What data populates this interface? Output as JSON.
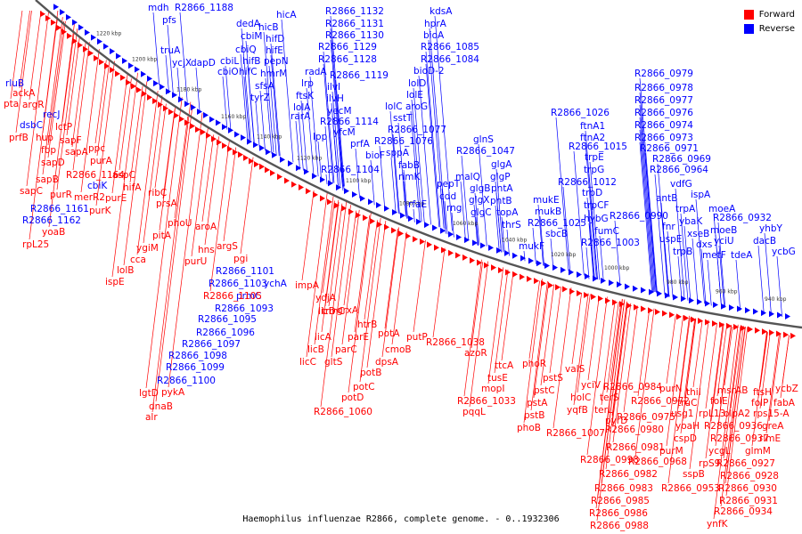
{
  "caption": "Haemophilus influenzae R2866, complete genome. - 0..1932306",
  "legend": {
    "forward_label": "Forward",
    "reverse_label": "Reverse",
    "forward_color": "#ff0000",
    "reverse_color": "#0000ff"
  },
  "backbone_color": "#555555",
  "ticks": [
    "940 kbp",
    "960 kbp",
    "980 kbp",
    "1000 kbp",
    "1020 kbp",
    "1040 kbp",
    "1060 kbp",
    "1080 kbp",
    "1100 kbp",
    "1120 kbp",
    "1140 kbp",
    "1160 kbp",
    "1180 kbp",
    "1200 kbp",
    "1220 kbp"
  ],
  "genes": {
    "reverse": [
      "mdh",
      "R2866_1188",
      "pfs",
      "truA",
      "ycjX",
      "dapD",
      "dedA",
      "hicB",
      "hicA",
      "cbiM",
      "hifD",
      "cbiQ",
      "hifE",
      "cbiL",
      "hifB",
      "pepN",
      "cbiO",
      "hifC",
      "hmrM",
      "sfsA",
      "tyrZ",
      "R2866_1132",
      "R2866_1131",
      "R2866_1130",
      "R2866_1129",
      "R2866_1128",
      "radA",
      "lrp",
      "ftsK",
      "lolA",
      "rarA",
      "R2866_1119",
      "ilvI",
      "ilvH",
      "yecM",
      "R2866_1114",
      "lpp",
      "yfcM",
      "prfA",
      "bioF",
      "R2866_1104",
      "kdsA",
      "hprA",
      "bioA",
      "R2866_1085",
      "R2866_1084",
      "bioD-2",
      "lolD",
      "lolE",
      "lolC",
      "aroG",
      "sstT",
      "R2866_1077",
      "R2866_1076",
      "sppA",
      "fabB",
      "rimK",
      "rfaE",
      "glnS",
      "R2866_1047",
      "glgA",
      "pepT",
      "malQ",
      "glgP",
      "cdd",
      "glgB",
      "rng",
      "glgX",
      "pntA",
      "pntB",
      "glgC",
      "topA",
      "thrS",
      "mukE",
      "mukB",
      "sbcB",
      "mukF",
      "R2866_1025",
      "R2866_1026",
      "ftnA1",
      "ftnA2",
      "R2866_1015",
      "trpE",
      "trpG",
      "R2866_1012",
      "trpD",
      "trpCF",
      "hybG",
      "fumC",
      "R2866_1003",
      "R2866_0990",
      "R2866_0979",
      "R2866_0978",
      "R2866_0977",
      "R2866_0976",
      "R2866_0974",
      "R2866_0973",
      "R2866_0971",
      "R2866_0969",
      "R2866_0964",
      "vdfG",
      "ispA",
      "antB",
      "trpA",
      "ybaK",
      "moeA",
      "fnr",
      "uspE",
      "xseB",
      "R2866_0932",
      "moeB",
      "dxs",
      "yciU",
      "yhbY",
      "dacB",
      "trpB",
      "metF",
      "tdeA",
      "ycbG",
      "rluB",
      "recJ",
      "dsbC",
      "cbiK",
      "R2866_1161",
      "R2866_1162",
      "R2866_1101",
      "ychA",
      "R2866_1103",
      "prmC",
      "R2866_1093",
      "R2866_1095",
      "R2866_1096",
      "R2866_1097",
      "R2866_1098",
      "R2866_1099",
      "R2866_1100"
    ],
    "forward": [
      "ackA",
      "pta",
      "argR",
      "prfB",
      "lctP",
      "hup",
      "sapF",
      "fbp",
      "sapA",
      "ppc",
      "sapD",
      "purA",
      "sapB",
      "R2866_1164",
      "aspC",
      "sapC",
      "hifA",
      "purR",
      "merR2",
      "purE",
      "purK",
      "yoaB",
      "rpL25",
      "ribC",
      "prsA",
      "aroA",
      "phoU",
      "hns",
      "argS",
      "pitA",
      "purU",
      "ygiM",
      "pgi",
      "cca",
      "lolB",
      "ispE",
      "R2866_1105",
      "impA",
      "ydjA",
      "trmC",
      "licD",
      "grxA",
      "licA",
      "htrB",
      "licB",
      "parE",
      "parC",
      "licC",
      "gltS",
      "potA",
      "putP",
      "potB",
      "cmoB",
      "dpsA",
      "potC",
      "potD",
      "R2866_1060",
      "R2866_1038",
      "azoR",
      "ttcA",
      "tusE",
      "mopI",
      "R2866_1033",
      "pqqL",
      "phoR",
      "pstS",
      "pstC",
      "pstA",
      "pstB",
      "phoB",
      "valS",
      "yciV",
      "holC",
      "terS",
      "yqfB",
      "terL",
      "pyrD",
      "R2866_1007",
      "R2866_0998",
      "R2866_0984",
      "R2866_0972",
      "R2866_0975",
      "R2866_0980",
      "R2866_0981",
      "R2866_0968",
      "R2866_0982",
      "R2866_0983",
      "R2866_0985",
      "R2866_0986",
      "R2866_0988",
      "purN",
      "thiI",
      "truC",
      "usg1",
      "yoaH",
      "cspD",
      "purM",
      "sspB",
      "rpS9",
      "R2866_0953",
      "folE",
      "rpL13",
      "ycgL",
      "msrAB",
      "olpA2",
      "R2866_0936",
      "R2866_0937",
      "R2866_0927",
      "glmM",
      "R2866_0928",
      "R2866_0930",
      "R2866_0931",
      "R2866_0934",
      "ynfK",
      "ftsH",
      "ycbZ",
      "folP",
      "fabA",
      "rps15-A",
      "greA",
      "rlmE",
      "lgtD",
      "pykA",
      "dnaB",
      "alr"
    ]
  }
}
